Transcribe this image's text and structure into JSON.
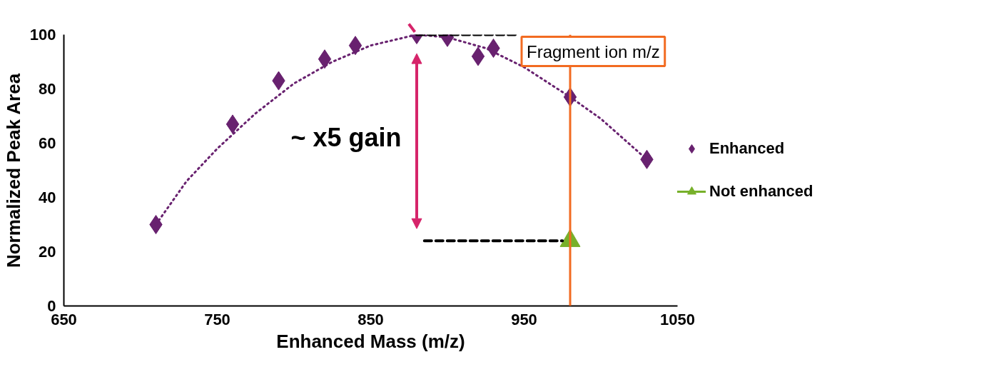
{
  "chart_data": {
    "type": "scatter",
    "xlabel": "Enhanced Mass (m/z)",
    "ylabel": "Normalized Peak Area",
    "xlim": [
      650,
      1050
    ],
    "xticks": [
      650,
      750,
      850,
      950,
      1050
    ],
    "ylim": [
      0,
      100
    ],
    "yticks": [
      0,
      20,
      40,
      60,
      80,
      100
    ],
    "grid": false,
    "legend": "right",
    "series": [
      {
        "name": "Enhanced",
        "color": "#68216f",
        "marker": "diamond",
        "x": [
          710,
          760,
          790,
          820,
          840,
          880,
          900,
          920,
          930,
          980,
          1030
        ],
        "values": [
          30,
          67,
          83,
          91,
          96,
          100,
          99,
          92,
          95,
          77,
          54
        ]
      },
      {
        "type": "line",
        "color": "#68216f",
        "marker": "none",
        "line_style": "dotted",
        "x": [
          710,
          730,
          750,
          775,
          800,
          825,
          850,
          880,
          900,
          925,
          950,
          980,
          1000,
          1030
        ],
        "values": [
          30,
          46,
          58,
          71,
          82,
          90,
          96,
          100,
          99,
          95,
          88,
          77,
          69,
          54
        ]
      },
      {
        "type": "line",
        "name": "Not enhanced",
        "color": "#77b02a",
        "marker": "triangle",
        "line_style": "solid",
        "x": [
          980
        ],
        "values": [
          24
        ]
      },
      {
        "type": "line",
        "color": "#000000",
        "marker": "none",
        "line_style": "dashed",
        "x": [
          880,
          945
        ],
        "values": [
          100,
          100
        ]
      },
      {
        "type": "line",
        "color": "#000000",
        "marker": "none",
        "line_style": "dashed",
        "x": [
          885,
          975
        ],
        "values": [
          24,
          24
        ]
      }
    ],
    "ref_lines": [
      {
        "axis": "x",
        "value": 980,
        "label": "Fragment ion m/z",
        "color": "#f26b21"
      }
    ],
    "annotations": [
      "~ x5 gain"
    ]
  }
}
